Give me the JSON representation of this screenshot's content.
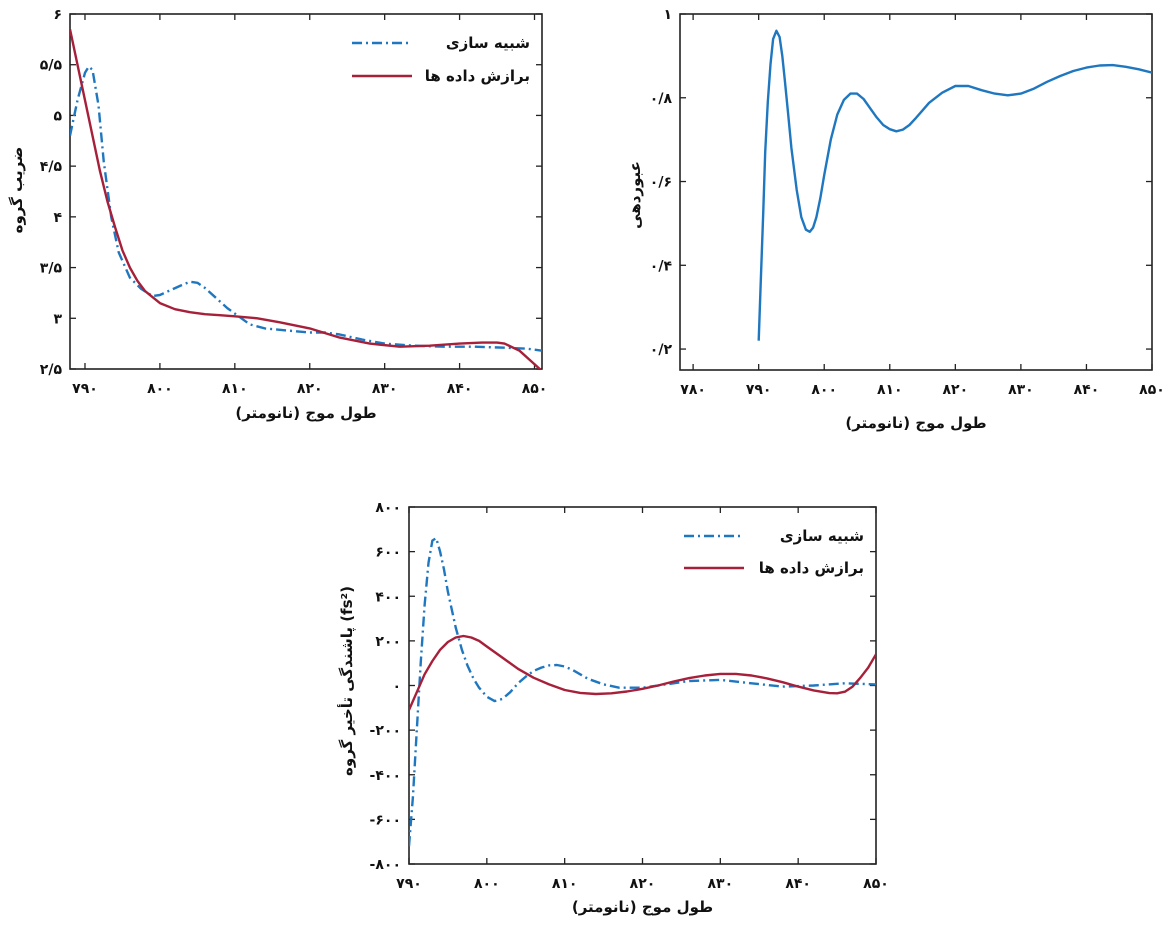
{
  "colors": {
    "simulation": "#1f77c0",
    "fit": "#a6203a",
    "axis": "#222222"
  },
  "chart_data": [
    {
      "type": "line",
      "xlabel": "طول موج (نانومتر)",
      "ylabel": "ضریب گروه",
      "xlim": [
        788,
        851
      ],
      "ylim": [
        2.5,
        6
      ],
      "x_ticks": [
        790,
        800,
        810,
        820,
        830,
        840,
        850
      ],
      "x_tick_labels": [
        "۷۹۰",
        "۸۰۰",
        "۸۱۰",
        "۸۲۰",
        "۸۳۰",
        "۸۴۰",
        "۸۵۰"
      ],
      "y_ticks": [
        2.5,
        3,
        3.5,
        4,
        4.5,
        5,
        5.5,
        6
      ],
      "y_tick_labels": [
        "۲/۵",
        "۳",
        "۳/۵",
        "۴",
        "۴/۵",
        "۵",
        "۵/۵",
        "۶"
      ],
      "legend": "top-right",
      "series": [
        {
          "name": "شبیه سازی",
          "style": "dashdot",
          "x": [
            788,
            789,
            790,
            790.5,
            791,
            791.8,
            792.5,
            793.5,
            794.5,
            796,
            797.5,
            799,
            800,
            801.5,
            803,
            804,
            805,
            806,
            807.5,
            809,
            810.5,
            812,
            814,
            817,
            820,
            822,
            824,
            827,
            830,
            834,
            838,
            842,
            846,
            849,
            851
          ],
          "y": [
            4.8,
            5.15,
            5.42,
            5.48,
            5.45,
            5.1,
            4.55,
            4.0,
            3.65,
            3.4,
            3.29,
            3.22,
            3.23,
            3.28,
            3.33,
            3.36,
            3.35,
            3.3,
            3.2,
            3.1,
            3.02,
            2.94,
            2.9,
            2.88,
            2.86,
            2.86,
            2.84,
            2.79,
            2.75,
            2.73,
            2.72,
            2.72,
            2.71,
            2.7,
            2.68
          ]
        },
        {
          "name": "برازش داده ها",
          "style": "solid",
          "x": [
            788,
            789,
            790,
            791,
            792,
            793,
            794,
            795,
            796,
            797,
            798,
            800,
            802,
            804,
            806,
            808,
            810,
            813,
            816,
            820,
            824,
            828,
            832,
            836,
            840,
            843,
            845,
            846,
            848,
            849.5,
            851
          ],
          "y": [
            5.85,
            5.5,
            5.15,
            4.8,
            4.45,
            4.15,
            3.9,
            3.67,
            3.5,
            3.37,
            3.27,
            3.15,
            3.09,
            3.06,
            3.04,
            3.03,
            3.02,
            3.0,
            2.96,
            2.9,
            2.81,
            2.75,
            2.72,
            2.73,
            2.75,
            2.76,
            2.76,
            2.75,
            2.68,
            2.58,
            2.48
          ]
        }
      ]
    },
    {
      "type": "line",
      "xlabel": "طول موج (نانومتر)",
      "ylabel": "عبوردهی",
      "xlim": [
        778,
        850
      ],
      "ylim": [
        0.15,
        1.0
      ],
      "x_ticks": [
        780,
        790,
        800,
        810,
        820,
        830,
        840,
        850
      ],
      "x_tick_labels": [
        "۷۸۰",
        "۷۹۰",
        "۸۰۰",
        "۸۱۰",
        "۸۲۰",
        "۸۳۰",
        "۸۴۰",
        "۸۵۰"
      ],
      "y_ticks": [
        0.2,
        0.4,
        0.6,
        0.8,
        1.0
      ],
      "y_tick_labels": [
        "۰/۲",
        "۰/۴",
        "۰/۶",
        "۰/۸",
        "۱"
      ],
      "series": [
        {
          "style": "solid",
          "x": [
            790,
            790.3,
            790.7,
            791,
            791.4,
            791.8,
            792.2,
            792.7,
            793.2,
            793.6,
            794,
            794.5,
            795,
            795.8,
            796.5,
            797.2,
            797.8,
            798.3,
            798.8,
            799.4,
            800,
            801,
            802,
            803,
            804,
            805,
            806,
            807,
            808,
            809,
            810,
            811,
            812,
            813,
            814,
            815,
            816,
            818,
            820,
            822,
            824,
            826,
            828,
            830,
            832,
            834,
            836,
            838,
            840,
            842,
            844,
            846,
            848,
            850
          ],
          "y": [
            0.22,
            0.35,
            0.53,
            0.67,
            0.79,
            0.88,
            0.94,
            0.96,
            0.945,
            0.9,
            0.84,
            0.76,
            0.68,
            0.58,
            0.515,
            0.485,
            0.48,
            0.49,
            0.515,
            0.56,
            0.615,
            0.7,
            0.76,
            0.795,
            0.81,
            0.81,
            0.797,
            0.775,
            0.753,
            0.735,
            0.725,
            0.72,
            0.724,
            0.735,
            0.752,
            0.77,
            0.788,
            0.812,
            0.828,
            0.828,
            0.818,
            0.81,
            0.806,
            0.81,
            0.822,
            0.838,
            0.852,
            0.864,
            0.872,
            0.877,
            0.878,
            0.874,
            0.868,
            0.86
          ]
        }
      ]
    },
    {
      "type": "line",
      "xlabel": "طول موج (نانومتر)",
      "ylabel": "پاشندگی تأخیر گروه  (fs²)",
      "xlim": [
        790,
        850
      ],
      "ylim": [
        -800,
        800
      ],
      "x_ticks": [
        790,
        800,
        810,
        820,
        830,
        840,
        850
      ],
      "x_tick_labels": [
        "۷۹۰",
        "۸۰۰",
        "۸۱۰",
        "۸۲۰",
        "۸۳۰",
        "۸۴۰",
        "۸۵۰"
      ],
      "y_ticks": [
        -800,
        -600,
        -400,
        -200,
        0,
        200,
        400,
        600,
        800
      ],
      "y_tick_labels": [
        "-۸۰۰",
        "-۶۰۰",
        "-۴۰۰",
        "-۲۰۰",
        "۰",
        "۲۰۰",
        "۴۰۰",
        "۶۰۰",
        "۸۰۰"
      ],
      "legend": "top-right",
      "series": [
        {
          "name": "شبیه سازی",
          "style": "dashdot",
          "x": [
            790,
            790.5,
            791,
            791.5,
            792,
            792.5,
            793,
            793.5,
            794,
            794.5,
            795,
            795.5,
            796,
            796.8,
            797.5,
            798.3,
            799,
            800,
            801,
            802,
            803,
            804,
            805,
            806,
            807,
            808,
            809,
            810,
            811,
            812,
            813,
            815,
            817,
            820,
            823,
            826,
            830,
            834,
            838,
            842,
            846,
            850
          ],
          "y": [
            -720,
            -500,
            -200,
            100,
            360,
            550,
            650,
            660,
            600,
            520,
            420,
            340,
            260,
            160,
            90,
            30,
            -10,
            -50,
            -70,
            -60,
            -30,
            10,
            40,
            65,
            80,
            90,
            92,
            85,
            70,
            50,
            30,
            5,
            -10,
            -10,
            5,
            20,
            25,
            10,
            -5,
            0,
            10,
            5
          ]
        },
        {
          "name": "برازش داده ها",
          "style": "solid",
          "x": [
            790,
            791,
            792,
            793,
            794,
            795,
            796,
            797,
            798,
            799,
            800,
            802,
            804,
            806,
            808,
            810,
            812,
            814,
            816,
            818,
            820,
            822,
            824,
            826,
            828,
            830,
            832,
            834,
            836,
            838,
            840,
            842,
            844,
            845,
            846,
            847,
            848,
            849,
            850
          ],
          "y": [
            -110,
            -30,
            50,
            110,
            160,
            195,
            215,
            222,
            215,
            200,
            175,
            125,
            75,
            35,
            5,
            -20,
            -33,
            -38,
            -35,
            -27,
            -15,
            0,
            18,
            33,
            45,
            52,
            52,
            45,
            32,
            15,
            -5,
            -22,
            -34,
            -35,
            -28,
            -5,
            35,
            80,
            140
          ]
        }
      ]
    }
  ]
}
